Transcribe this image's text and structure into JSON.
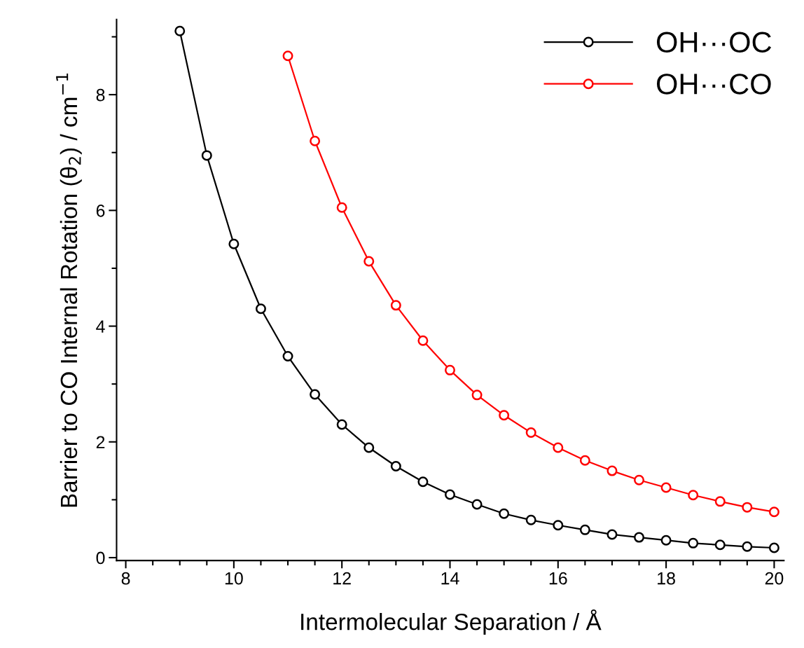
{
  "chart_data": {
    "type": "line",
    "xlabel": "Intermolecular Separation / Å",
    "ylabel": "Barrier to CO Internal Rotation (θ$_{2}$) / cm$^{−1}$",
    "xlim": [
      7.83,
      20.18
    ],
    "xticks": [
      8,
      10,
      12,
      14,
      16,
      18,
      20
    ],
    "ylim": [
      -0.05,
      9.3
    ],
    "yticks": [
      0,
      2,
      4,
      6,
      8
    ],
    "marker": "circle",
    "line_style": "solid",
    "legend": "top right",
    "grid": false,
    "series": [
      {
        "name": "OH···OC",
        "color": "#000000",
        "x": [
          9,
          9.5,
          10,
          10.5,
          11,
          11.5,
          12,
          12.5,
          13,
          13.5,
          14,
          14.5,
          15,
          15.5,
          16,
          16.5,
          17,
          17.5,
          18,
          18.5,
          19,
          19.5,
          20
        ],
        "values": [
          9.1,
          6.95,
          5.42,
          4.3,
          3.48,
          2.82,
          2.3,
          1.9,
          1.58,
          1.31,
          1.09,
          0.92,
          0.76,
          0.65,
          0.56,
          0.48,
          0.4,
          0.35,
          0.3,
          0.25,
          0.22,
          0.19,
          0.17
        ]
      },
      {
        "name": "OH···CO",
        "color": "#ff0000",
        "x": [
          11,
          11.5,
          12,
          12.5,
          13,
          13.5,
          14,
          14.5,
          15,
          15.5,
          16,
          16.5,
          17,
          17.5,
          18,
          18.5,
          19,
          19.5,
          20
        ],
        "values": [
          8.67,
          7.2,
          6.05,
          5.12,
          4.36,
          3.75,
          3.24,
          2.81,
          2.46,
          2.16,
          1.9,
          1.68,
          1.5,
          1.34,
          1.21,
          1.08,
          0.97,
          0.87,
          0.79
        ]
      }
    ]
  }
}
